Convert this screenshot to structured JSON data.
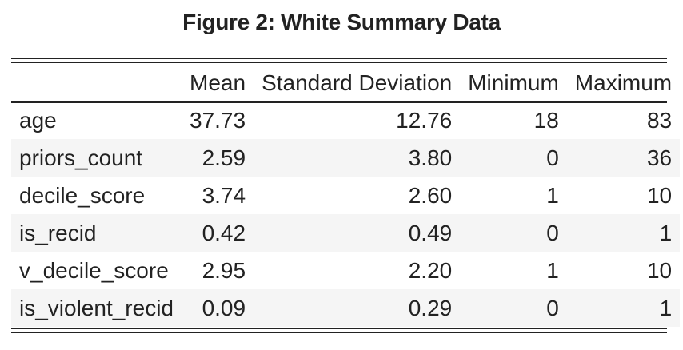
{
  "title": "Figure 2: White Summary Data",
  "table": {
    "headers": [
      "",
      "Mean",
      "Standard Deviation",
      "Minimum",
      "Maximum"
    ],
    "rows": [
      {
        "name": "age",
        "mean": "37.73",
        "sd": "12.76",
        "min": "18",
        "max": "83"
      },
      {
        "name": "priors_count",
        "mean": "2.59",
        "sd": "3.80",
        "min": "0",
        "max": "36"
      },
      {
        "name": "decile_score",
        "mean": "3.74",
        "sd": "2.60",
        "min": "1",
        "max": "10"
      },
      {
        "name": "is_recid",
        "mean": "0.42",
        "sd": "0.49",
        "min": "0",
        "max": "1"
      },
      {
        "name": "v_decile_score",
        "mean": "2.95",
        "sd": "2.20",
        "min": "1",
        "max": "10"
      },
      {
        "name": "is_violent_recid",
        "mean": "0.09",
        "sd": "0.29",
        "min": "0",
        "max": "1"
      }
    ]
  }
}
